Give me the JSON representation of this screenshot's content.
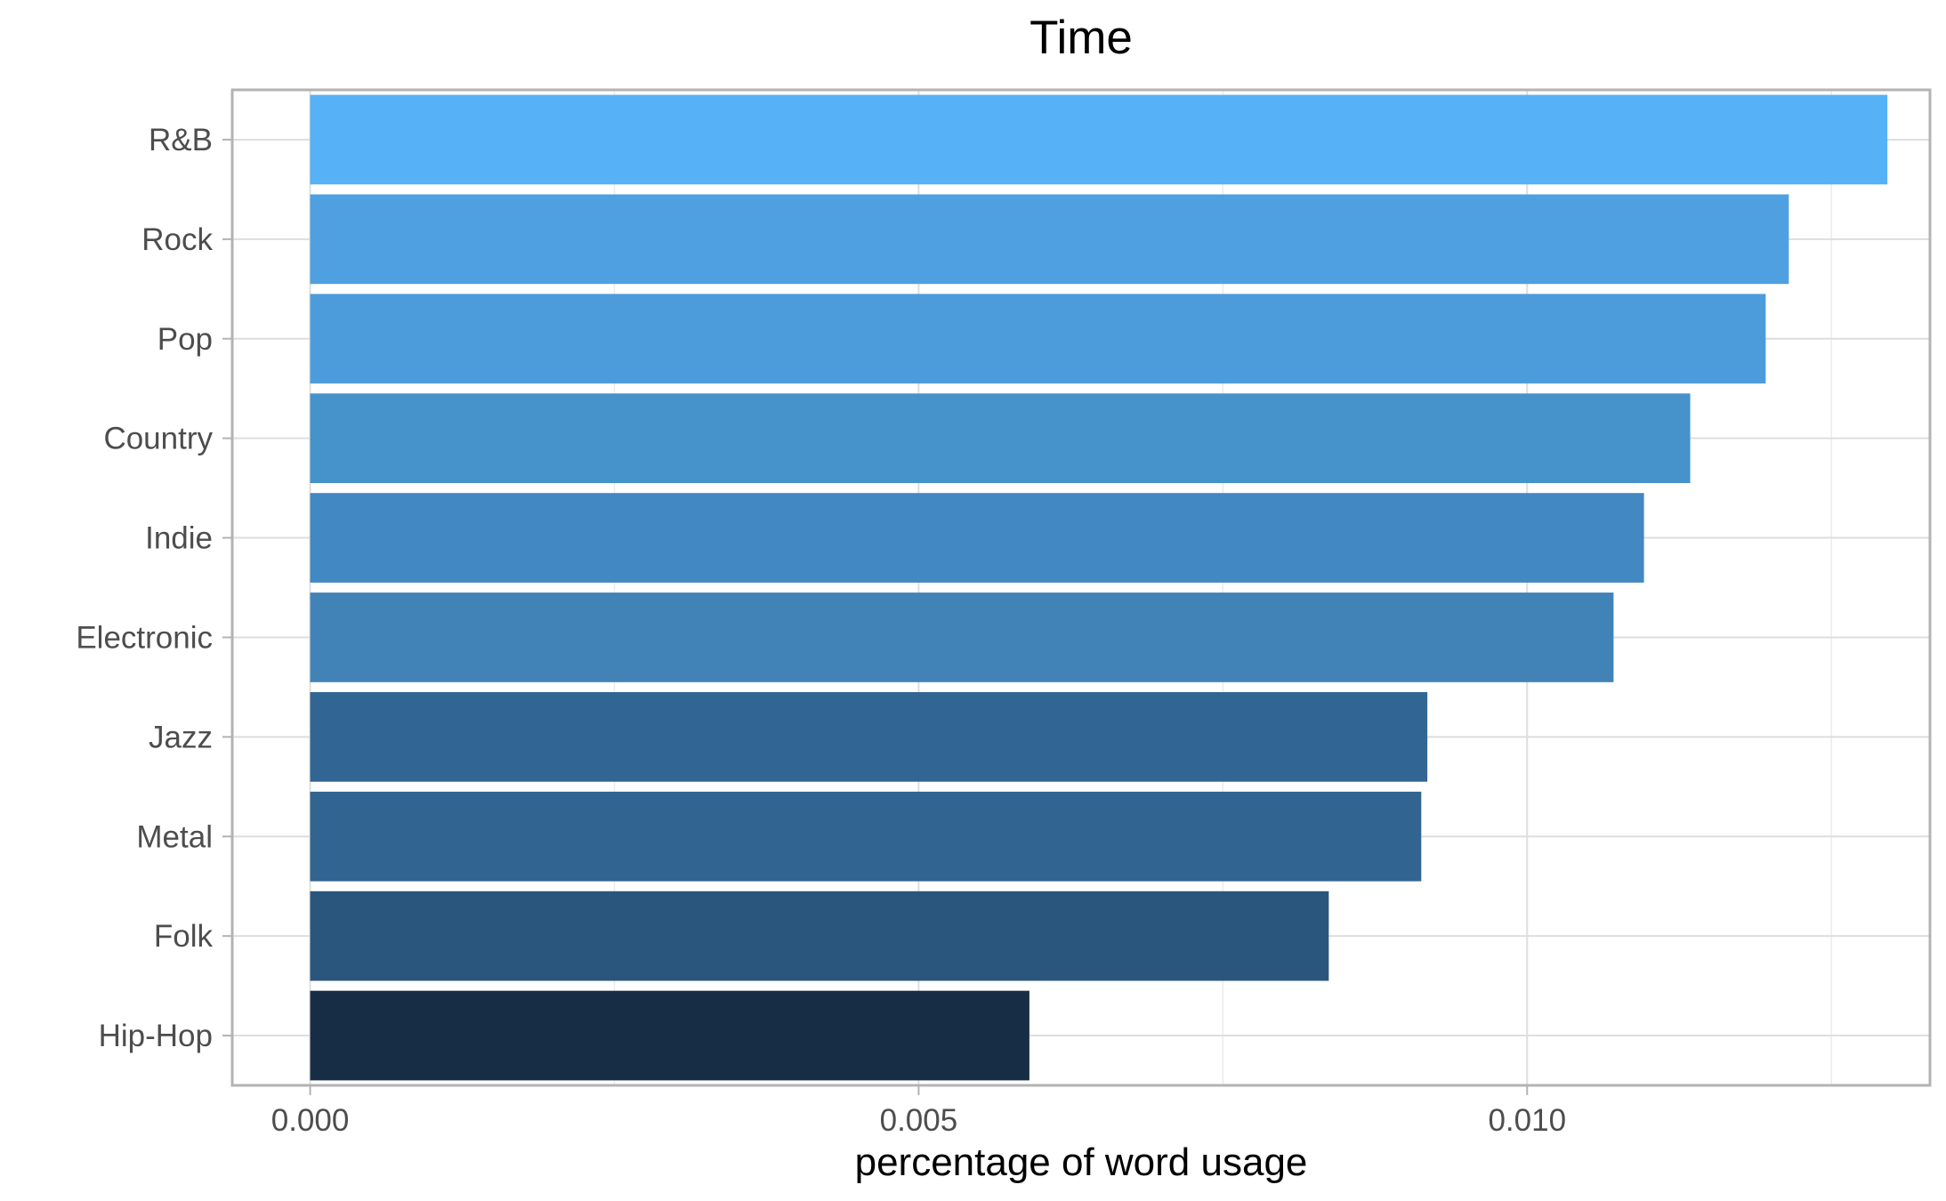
{
  "chart_data": {
    "type": "bar",
    "orientation": "horizontal",
    "title": "Time",
    "xlabel": "percentage of word usage",
    "ylabel": "",
    "categories": [
      "R&B",
      "Rock",
      "Pop",
      "Country",
      "Indie",
      "Electronic",
      "Jazz",
      "Metal",
      "Folk",
      "Hip-Hop"
    ],
    "values": [
      0.01296,
      0.01215,
      0.01196,
      0.01134,
      0.01096,
      0.01071,
      0.00918,
      0.00913,
      0.00837,
      0.00591
    ],
    "bar_colors": [
      "#56B1F7",
      "#4FA0E0",
      "#4C9CDB",
      "#4692CB",
      "#4288C2",
      "#4183B7",
      "#316593",
      "#316490",
      "#2A567D",
      "#172D45"
    ],
    "xlim": [
      -0.00064,
      0.01331
    ],
    "x_ticks": [
      0.0,
      0.005,
      0.01
    ],
    "x_tick_labels": [
      "0.000",
      "0.005",
      "0.010"
    ],
    "grid": true,
    "legend": "none"
  }
}
